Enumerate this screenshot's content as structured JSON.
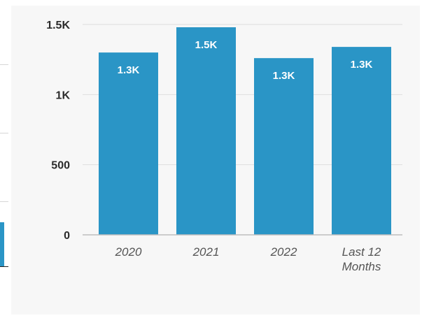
{
  "chart_data": {
    "type": "bar",
    "categories": [
      "2020",
      "2021",
      "2022",
      "Last 12 Months"
    ],
    "category_lines": [
      [
        "2020"
      ],
      [
        "2021"
      ],
      [
        "2022"
      ],
      [
        "Last 12",
        "Months"
      ]
    ],
    "values": [
      1300,
      1480,
      1260,
      1340
    ],
    "data_labels": [
      "1.3K",
      "1.5K",
      "1.3K",
      "1.3K"
    ],
    "y_ticks": [
      0,
      500,
      1000,
      1500
    ],
    "y_tick_labels": [
      "0",
      "500",
      "1K",
      "1.5K"
    ],
    "ylim": [
      0,
      1500
    ],
    "grid": true,
    "colors": {
      "bar": "#2a95c6",
      "grid": "#dedede",
      "axis": "#bdbdbd"
    }
  }
}
